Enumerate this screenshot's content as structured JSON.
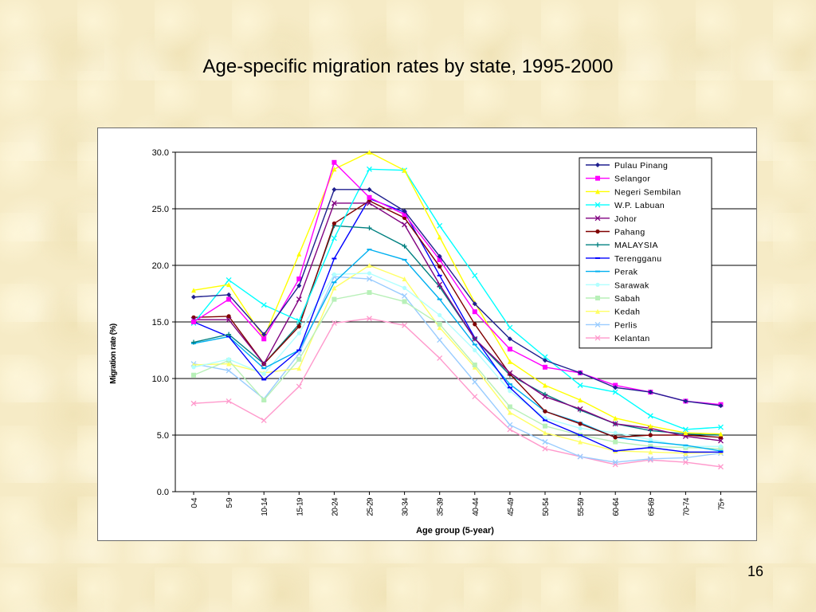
{
  "slide": {
    "title": "Age-specific migration rates by state, 1995-2000",
    "page_number": "16"
  },
  "chart_data": {
    "type": "line",
    "title": "",
    "xlabel": "Age group (5-year)",
    "ylabel": "Migration rate (%)",
    "ylim": [
      0,
      30
    ],
    "yticks": [
      "0.0",
      "5.0",
      "10.0",
      "15.0",
      "20.0",
      "25.0",
      "30.0"
    ],
    "grid": "horizontal",
    "legend_position": "top-right",
    "categories": [
      "0-4",
      "5-9",
      "10-14",
      "15-19",
      "20-24",
      "25-29",
      "30-34",
      "35-39",
      "40-44",
      "45-49",
      "50-54",
      "55-59",
      "60-64",
      "65-69",
      "70-74",
      "75+"
    ],
    "series": [
      {
        "name": "Pulau Pinang",
        "color": "#1f1f8f",
        "marker": "diamond",
        "values": [
          17.2,
          17.4,
          13.9,
          18.2,
          26.7,
          26.7,
          24.8,
          20.8,
          16.6,
          13.5,
          11.6,
          10.5,
          9.2,
          8.8,
          8.0,
          7.6
        ]
      },
      {
        "name": "Selangor",
        "color": "#ff00ff",
        "marker": "square",
        "values": [
          15.0,
          17.0,
          13.5,
          18.8,
          29.1,
          26.0,
          24.5,
          20.5,
          15.9,
          12.6,
          11.0,
          10.5,
          9.4,
          8.8,
          8.0,
          7.7
        ]
      },
      {
        "name": "Negeri Sembilan",
        "color": "#ffff00",
        "marker": "triangle",
        "values": [
          17.8,
          18.3,
          13.6,
          21.0,
          28.5,
          30.0,
          28.4,
          22.5,
          16.7,
          11.5,
          9.4,
          8.1,
          6.5,
          5.8,
          5.2,
          5.1
        ]
      },
      {
        "name": "W.P. Labuan",
        "color": "#00ffff",
        "marker": "x",
        "values": [
          14.9,
          18.7,
          16.5,
          15.1,
          22.4,
          28.5,
          28.4,
          23.5,
          19.1,
          14.5,
          11.9,
          9.4,
          8.8,
          6.7,
          5.5,
          5.7
        ]
      },
      {
        "name": "Johor",
        "color": "#800080",
        "marker": "x",
        "values": [
          15.2,
          15.2,
          11.3,
          17.0,
          25.5,
          25.5,
          23.6,
          18.3,
          13.5,
          10.5,
          8.4,
          7.3,
          6.0,
          5.6,
          4.9,
          4.5
        ]
      },
      {
        "name": "Pahang",
        "color": "#800000",
        "marker": "circle",
        "values": [
          15.4,
          15.5,
          11.3,
          14.6,
          23.7,
          25.7,
          24.2,
          19.9,
          14.8,
          10.4,
          7.1,
          6.0,
          4.8,
          5.0,
          5.0,
          4.8
        ]
      },
      {
        "name": "MALAYSIA",
        "color": "#008080",
        "marker": "plus",
        "values": [
          13.2,
          13.9,
          11.3,
          14.8,
          23.5,
          23.3,
          21.7,
          18.1,
          13.5,
          10.3,
          8.6,
          7.2,
          6.0,
          5.4,
          5.1,
          5.0
        ]
      },
      {
        "name": "Terengganu",
        "color": "#0000ff",
        "marker": "dash",
        "values": [
          15.0,
          13.7,
          9.9,
          12.5,
          20.6,
          25.9,
          24.7,
          19.1,
          13.6,
          9.2,
          6.3,
          5.0,
          3.6,
          3.9,
          3.5,
          3.5
        ]
      },
      {
        "name": "Perak",
        "color": "#00b0f0",
        "marker": "dash",
        "values": [
          13.1,
          13.7,
          10.9,
          12.5,
          18.5,
          21.4,
          20.5,
          17.0,
          13.0,
          9.5,
          7.1,
          6.1,
          4.8,
          4.4,
          4.1,
          3.6
        ]
      },
      {
        "name": "Sarawak",
        "color": "#b0ffff",
        "marker": "circle",
        "values": [
          11.0,
          11.7,
          10.4,
          14.0,
          19.2,
          19.3,
          18.0,
          15.6,
          12.5,
          8.9,
          6.5,
          5.6,
          5.2,
          4.6,
          4.0,
          4.0
        ]
      },
      {
        "name": "Sabah",
        "color": "#b8f0b8",
        "marker": "square",
        "values": [
          10.3,
          11.6,
          8.1,
          11.7,
          17.0,
          17.6,
          16.8,
          14.8,
          11.2,
          7.5,
          5.8,
          5.0,
          4.4,
          4.0,
          3.9,
          3.8
        ]
      },
      {
        "name": "Kedah",
        "color": "#ffff66",
        "marker": "triangle",
        "values": [
          11.2,
          11.3,
          10.5,
          10.9,
          18.0,
          20.0,
          18.8,
          14.5,
          11.0,
          7.0,
          5.2,
          4.4,
          3.6,
          3.5,
          3.4,
          3.5
        ]
      },
      {
        "name": "Perlis",
        "color": "#99ccff",
        "marker": "x",
        "values": [
          11.3,
          10.7,
          8.2,
          12.2,
          19.0,
          18.8,
          17.3,
          13.4,
          9.7,
          5.9,
          4.4,
          3.1,
          2.6,
          2.9,
          3.0,
          3.4
        ]
      },
      {
        "name": "Kelantan",
        "color": "#ff99cc",
        "marker": "x",
        "values": [
          7.8,
          8.0,
          6.3,
          9.3,
          14.9,
          15.3,
          14.7,
          11.8,
          8.4,
          5.5,
          3.8,
          3.1,
          2.4,
          2.8,
          2.6,
          2.2
        ]
      }
    ]
  }
}
